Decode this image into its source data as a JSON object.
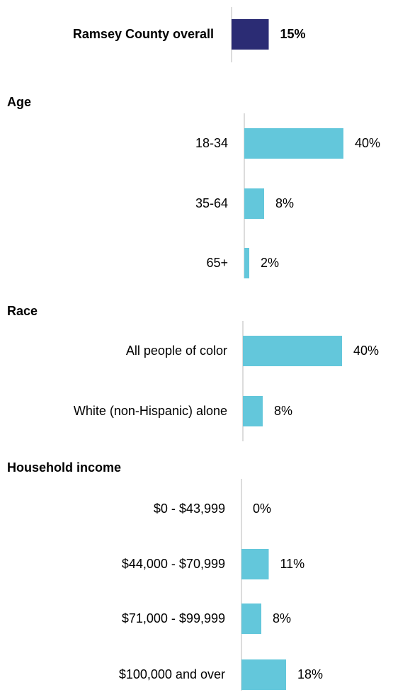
{
  "chart_data": {
    "type": "bar",
    "orientation": "horizontal",
    "unit": "%",
    "colors": {
      "overall": "#2b2c74",
      "group": "#63c7db",
      "axis": "#d0d0d0"
    },
    "overall": {
      "category": "Ramsey County overall",
      "value": 15,
      "label": "15%"
    },
    "groups": [
      {
        "heading": "Age",
        "items": [
          {
            "category": "18-34",
            "value": 40,
            "label": "40%"
          },
          {
            "category": "35-64",
            "value": 8,
            "label": "8%"
          },
          {
            "category": "65+",
            "value": 2,
            "label": "2%"
          }
        ]
      },
      {
        "heading": "Race",
        "items": [
          {
            "category": "All people of color",
            "value": 40,
            "label": "40%"
          },
          {
            "category": "White (non-Hispanic) alone",
            "value": 8,
            "label": "8%"
          }
        ]
      },
      {
        "heading": "Household income",
        "items": [
          {
            "category": "$0 - $43,999",
            "value": 0,
            "label": "0%"
          },
          {
            "category": "$44,000 - $70,999",
            "value": 11,
            "label": "11%"
          },
          {
            "category": "$71,000 - $99,999",
            "value": 8,
            "label": "8%"
          },
          {
            "category": "$100,000 and over",
            "value": 18,
            "label": "18%"
          }
        ]
      }
    ]
  }
}
